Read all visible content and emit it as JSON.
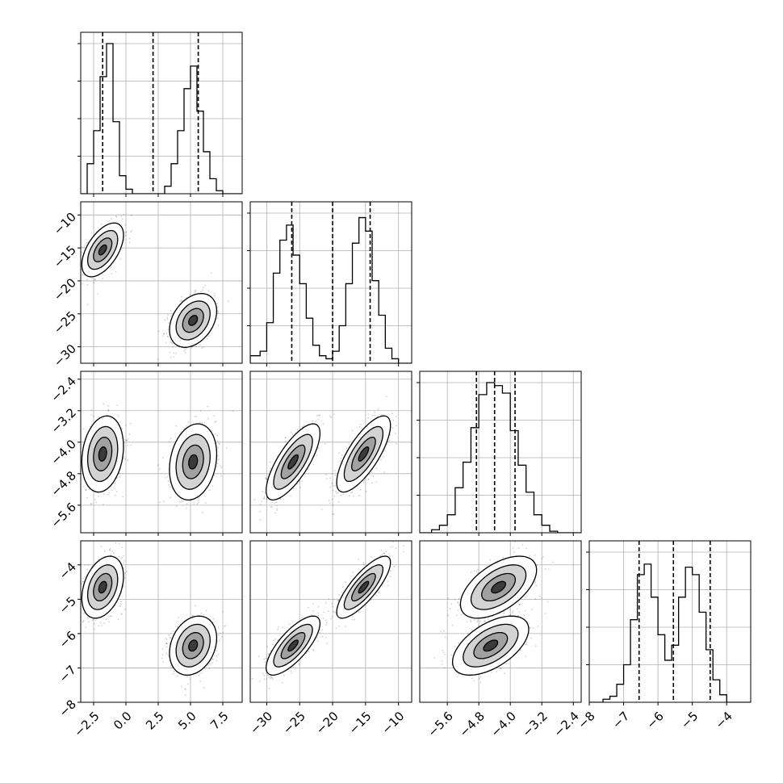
{
  "chart_data": {
    "type": "corner",
    "colors": {
      "line": "#000000",
      "grid": "#b0b0b0",
      "scatter": "#000000",
      "fill": "#808080"
    },
    "grid": true,
    "quantile_lines": "dashed",
    "dims": [
      {
        "range": [
          -3.5,
          9
        ],
        "ticks": [
          -2.5,
          0.0,
          2.5,
          5.0,
          7.5
        ],
        "tick_labels": [
          "−2.5",
          "0.0",
          "2.5",
          "5.0",
          "7.5"
        ],
        "quantiles": [
          -1.8,
          2.1,
          5.6
        ]
      },
      {
        "range": [
          -32.5,
          -8
        ],
        "ticks": [
          -30,
          -25,
          -20,
          -15,
          -10
        ],
        "tick_labels": [
          "−30",
          "−25",
          "−20",
          "−15",
          "−10"
        ],
        "quantiles": [
          -26.2,
          -20.0,
          -14.3
        ]
      },
      {
        "range": [
          -6.3,
          -2.2
        ],
        "ticks": [
          -5.6,
          -4.8,
          -4.0,
          -3.2,
          -2.4
        ],
        "tick_labels": [
          "−5.6",
          "−4.8",
          "−4.0",
          "−3.2",
          "−2.4"
        ],
        "quantiles": [
          -4.86,
          -4.4,
          -3.88
        ]
      },
      {
        "range": [
          -8.0,
          -3.3
        ],
        "ticks": [
          -8,
          -7,
          -6,
          -5,
          -4
        ],
        "tick_labels": [
          "−8",
          "−7",
          "−6",
          "−5",
          "−4"
        ],
        "quantiles": [
          -6.55,
          -5.55,
          -4.48
        ]
      }
    ],
    "histograms": [
      {
        "bins": [
          [
            -3.5,
            -3.0,
            0.0
          ],
          [
            -3.0,
            -2.5,
            0.2
          ],
          [
            -2.5,
            -2.0,
            0.42
          ],
          [
            -2.0,
            -1.5,
            0.78
          ],
          [
            -1.5,
            -1.0,
            1.0
          ],
          [
            -1.0,
            -0.5,
            0.48
          ],
          [
            -0.5,
            0.0,
            0.12
          ],
          [
            0.0,
            0.5,
            0.03
          ],
          [
            0.5,
            1.0,
            0.0
          ],
          [
            1.0,
            3.0,
            0.0
          ],
          [
            3.0,
            3.5,
            0.05
          ],
          [
            3.5,
            4.0,
            0.2
          ],
          [
            4.0,
            4.5,
            0.42
          ],
          [
            4.5,
            5.0,
            0.7
          ],
          [
            5.0,
            5.5,
            0.85
          ],
          [
            5.5,
            6.0,
            0.55
          ],
          [
            6.0,
            6.5,
            0.28
          ],
          [
            6.5,
            7.0,
            0.1
          ],
          [
            7.0,
            7.5,
            0.02
          ],
          [
            7.5,
            9.0,
            0.0
          ]
        ]
      },
      {
        "bins": [
          [
            -32.5,
            -31,
            0.05
          ],
          [
            -31,
            -30,
            0.08
          ],
          [
            -30,
            -29,
            0.27
          ],
          [
            -29,
            -28,
            0.6
          ],
          [
            -28,
            -27,
            0.82
          ],
          [
            -27,
            -26,
            0.92
          ],
          [
            -26,
            -25,
            0.72
          ],
          [
            -25,
            -24,
            0.53
          ],
          [
            -24,
            -23,
            0.3
          ],
          [
            -23,
            -22,
            0.12
          ],
          [
            -22,
            -21,
            0.05
          ],
          [
            -21,
            -20,
            0.03
          ],
          [
            -20,
            -19,
            0.08
          ],
          [
            -19,
            -18,
            0.25
          ],
          [
            -18,
            -17,
            0.53
          ],
          [
            -17,
            -16,
            0.8
          ],
          [
            -16,
            -15,
            0.97
          ],
          [
            -15,
            -14,
            0.88
          ],
          [
            -14,
            -13,
            0.55
          ],
          [
            -13,
            -12,
            0.32
          ],
          [
            -12,
            -11,
            0.1
          ],
          [
            -11,
            -10,
            0.03
          ],
          [
            -10,
            -8,
            0.0
          ]
        ]
      },
      {
        "bins": [
          [
            -6.3,
            -6.0,
            0.0
          ],
          [
            -6.0,
            -5.8,
            0.02
          ],
          [
            -5.8,
            -5.6,
            0.05
          ],
          [
            -5.6,
            -5.4,
            0.12
          ],
          [
            -5.4,
            -5.2,
            0.3
          ],
          [
            -5.2,
            -5.0,
            0.47
          ],
          [
            -5.0,
            -4.8,
            0.7
          ],
          [
            -4.8,
            -4.6,
            0.92
          ],
          [
            -4.6,
            -4.4,
            1.0
          ],
          [
            -4.4,
            -4.2,
            0.98
          ],
          [
            -4.2,
            -4.0,
            0.93
          ],
          [
            -4.0,
            -3.8,
            0.68
          ],
          [
            -3.8,
            -3.6,
            0.45
          ],
          [
            -3.6,
            -3.4,
            0.27
          ],
          [
            -3.4,
            -3.2,
            0.12
          ],
          [
            -3.2,
            -3.0,
            0.05
          ],
          [
            -3.0,
            -2.8,
            0.01
          ],
          [
            -2.8,
            -2.2,
            0.0
          ]
        ]
      },
      {
        "bins": [
          [
            -8.0,
            -7.6,
            0.0
          ],
          [
            -7.6,
            -7.4,
            0.02
          ],
          [
            -7.4,
            -7.2,
            0.04
          ],
          [
            -7.2,
            -7.0,
            0.12
          ],
          [
            -7.0,
            -6.8,
            0.25
          ],
          [
            -6.8,
            -6.6,
            0.55
          ],
          [
            -6.6,
            -6.4,
            0.85
          ],
          [
            -6.4,
            -6.2,
            0.92
          ],
          [
            -6.2,
            -6.0,
            0.7
          ],
          [
            -6.0,
            -5.8,
            0.45
          ],
          [
            -5.8,
            -5.6,
            0.28
          ],
          [
            -5.6,
            -5.4,
            0.38
          ],
          [
            -5.4,
            -5.2,
            0.7
          ],
          [
            -5.2,
            -5.0,
            0.9
          ],
          [
            -5.0,
            -4.8,
            0.85
          ],
          [
            -4.8,
            -4.6,
            0.6
          ],
          [
            -4.6,
            -4.4,
            0.35
          ],
          [
            -4.4,
            -4.2,
            0.15
          ],
          [
            -4.2,
            -4.0,
            0.05
          ],
          [
            -4.0,
            -3.3,
            0.0
          ]
        ]
      }
    ],
    "modes": [
      {
        "weight": 0.5,
        "mean": [
          -1.8,
          -15.3,
          -4.3,
          -4.65
        ],
        "sd": [
          0.75,
          1.9,
          0.45,
          0.42
        ],
        "corr": [
          [
            1,
            0.55,
            0.2,
            0.35
          ],
          [
            0.55,
            1,
            0.75,
            0.8
          ],
          [
            0.2,
            0.75,
            1,
            0.55
          ],
          [
            0.35,
            0.8,
            0.55,
            1
          ]
        ]
      },
      {
        "weight": 0.5,
        "mean": [
          5.2,
          -26.0,
          -4.5,
          -6.35
        ],
        "sd": [
          0.85,
          1.9,
          0.45,
          0.4
        ],
        "corr": [
          [
            1,
            0.35,
            0.2,
            0.25
          ],
          [
            0.35,
            1,
            0.75,
            0.75
          ],
          [
            0.2,
            0.75,
            1,
            0.55
          ],
          [
            0.25,
            0.75,
            0.55,
            1
          ]
        ]
      }
    ]
  }
}
